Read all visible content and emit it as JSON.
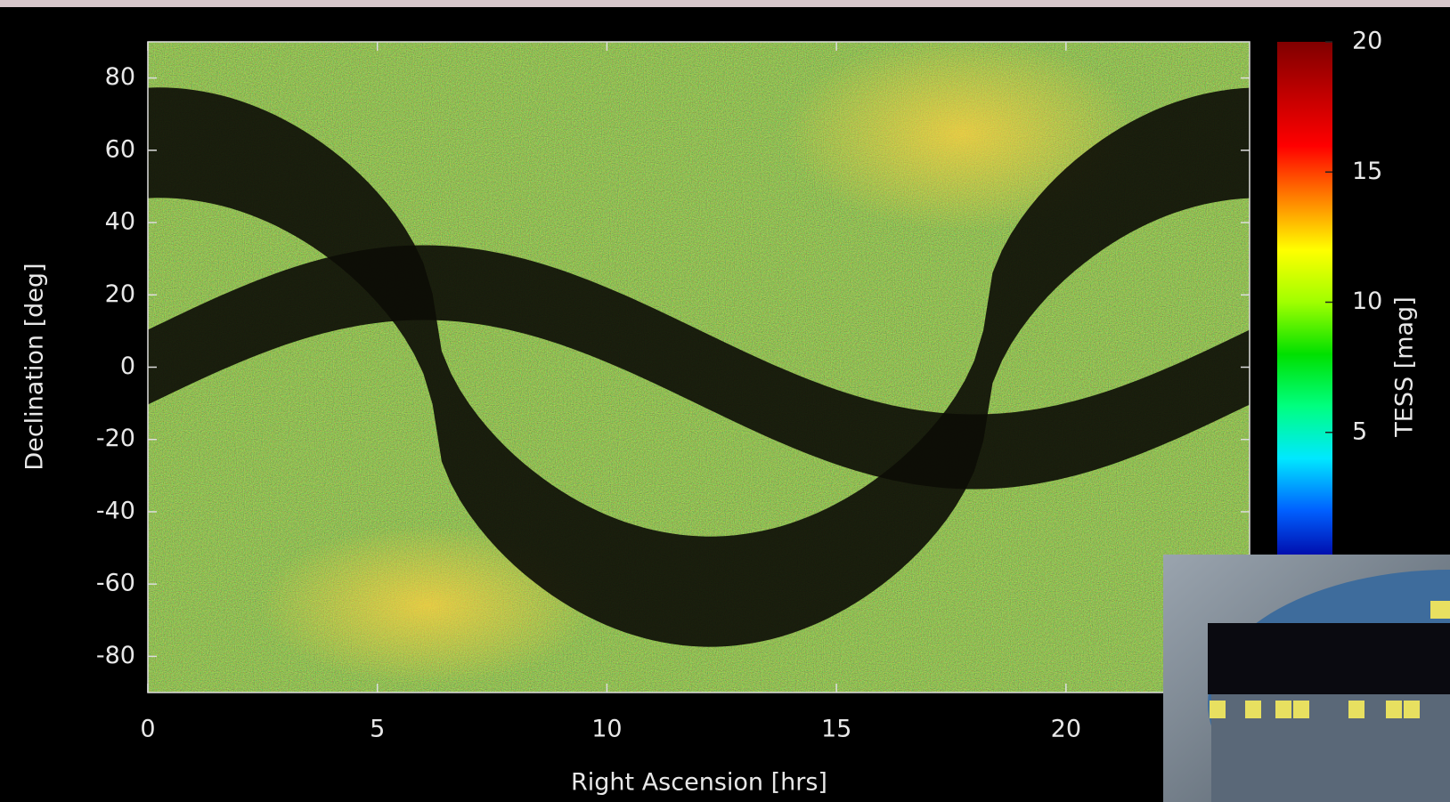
{
  "chart_data": {
    "type": "density-map",
    "xlabel": "Right Ascension [hrs]",
    "ylabel": "Declination [deg]",
    "xlim": [
      0,
      24
    ],
    "xticks": [
      0,
      5,
      10,
      15,
      20
    ],
    "ylim": [
      -90,
      90
    ],
    "yticks": [
      -80,
      -60,
      -40,
      -20,
      0,
      20,
      40,
      60,
      80
    ],
    "colorbar": {
      "label": "TESS [mag]",
      "lim": [
        0,
        20
      ],
      "ticks": [
        5,
        10,
        15,
        20
      ],
      "colors": [
        "#0000a0",
        "#0060ff",
        "#00e8ff",
        "#00ff80",
        "#00e000",
        "#a0ff00",
        "#ffff00",
        "#ff8000",
        "#ff0000",
        "#c00000",
        "#800000"
      ]
    }
  }
}
